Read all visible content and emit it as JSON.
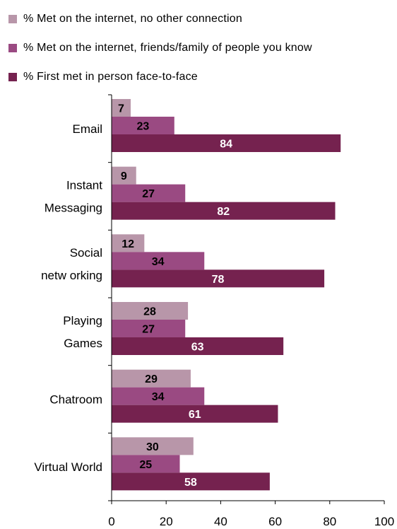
{
  "chart_data": {
    "type": "bar",
    "orientation": "horizontal",
    "categories": [
      [
        "Email"
      ],
      [
        "Instant",
        "Messaging"
      ],
      [
        "Social",
        "netw orking"
      ],
      [
        "Playing",
        "Games"
      ],
      [
        "Chatroom"
      ],
      [
        "Virtual World"
      ]
    ],
    "series": [
      {
        "name": "% Met on the internet, no other connection",
        "values": [
          7,
          9,
          12,
          28,
          29,
          30
        ],
        "color": "#b896a9",
        "label_color": "#000000"
      },
      {
        "name": "% Met on the internet, friends/family of people you know",
        "values": [
          23,
          27,
          34,
          27,
          34,
          25
        ],
        "color": "#9a4a82",
        "label_color": "#000000"
      },
      {
        "name": "% First met in person face-to-face",
        "values": [
          84,
          82,
          78,
          63,
          61,
          58
        ],
        "color": "#75224f",
        "label_color": "#ffffff"
      }
    ],
    "x_ticks": [
      "0",
      "20",
      "40",
      "60",
      "80",
      "100"
    ],
    "xlim": [
      0,
      100
    ],
    "legend_position": "top",
    "grid": false
  }
}
